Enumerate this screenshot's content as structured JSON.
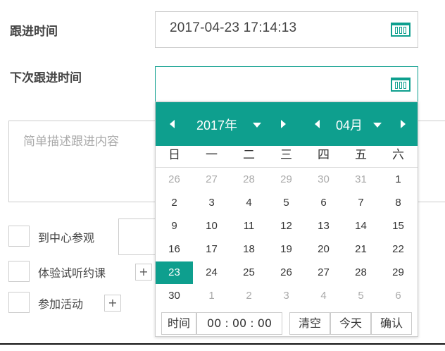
{
  "form": {
    "followup_time_label": "跟进时间",
    "followup_time_value": "2017-04-23 17:14:13",
    "next_followup_label": "下次跟进时间",
    "next_followup_value": "",
    "description_placeholder": "简单描述跟进内容",
    "options": [
      {
        "label": "到中心参观"
      },
      {
        "label": "体验试听约课"
      },
      {
        "label": "参加活动"
      }
    ],
    "plus_label": "+"
  },
  "datepicker": {
    "year": "2017年",
    "month": "04月",
    "weekdays": [
      "日",
      "一",
      "二",
      "三",
      "四",
      "五",
      "六"
    ],
    "weeks": [
      [
        "26",
        "27",
        "28",
        "29",
        "30",
        "31",
        "1"
      ],
      [
        "2",
        "3",
        "4",
        "5",
        "6",
        "7",
        "8"
      ],
      [
        "9",
        "10",
        "11",
        "12",
        "13",
        "14",
        "15"
      ],
      [
        "16",
        "17",
        "18",
        "19",
        "20",
        "21",
        "22"
      ],
      [
        "23",
        "24",
        "25",
        "26",
        "27",
        "28",
        "29"
      ],
      [
        "30",
        "1",
        "2",
        "3",
        "4",
        "5",
        "6"
      ]
    ],
    "selected_day": "23",
    "time_label": "时间",
    "time_value": "00 : 00 : 00",
    "clear_label": "清空",
    "today_label": "今天",
    "confirm_label": "确认"
  },
  "colors": {
    "accent": "#0e9f8e",
    "border": "#cccccc",
    "muted": "#aaaaaa"
  },
  "icons": {
    "calendar": "calendar-icon",
    "prev": "triangle-left-icon",
    "next": "triangle-right-icon",
    "dropdown": "caret-down-icon"
  }
}
